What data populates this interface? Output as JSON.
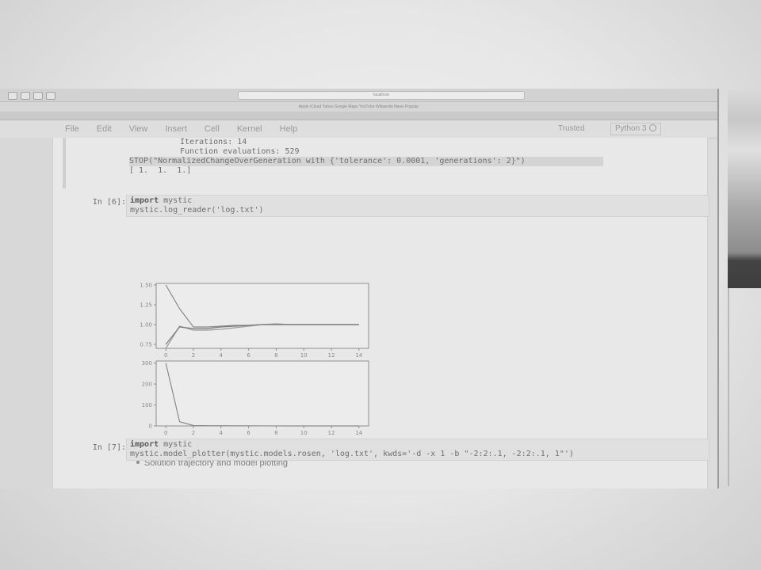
{
  "browser": {
    "url": "localhost",
    "bookmarks": "Apple  iCloud  Yahoo  Google Maps  YouTube  Wikipedia  News  Popular"
  },
  "menubar": {
    "items": [
      "File",
      "Edit",
      "View",
      "Insert",
      "Cell",
      "Kernel",
      "Help"
    ],
    "trusted": "Trusted",
    "kernel": "Python 3"
  },
  "cells": {
    "prev_output": {
      "iterations": "Iterations: 14",
      "evaluations": "Function evaluations: 529",
      "stop": "STOP(\"NormalizedChangeOverGeneration with {'tolerance': 0.0001, 'generations': 2}\")",
      "result": "[ 1.  1.  1.]"
    },
    "cell6": {
      "prompt": "In [6]:",
      "line1_kw": "import",
      "line1_rest": " mystic",
      "line2": "mystic.log_reader('log.txt')"
    },
    "markdown": {
      "bullet": "Solution trajectory and model plotting"
    },
    "cell7": {
      "prompt": "In [7]:",
      "line1_kw": "import",
      "line1_rest": " mystic",
      "line2": "mystic.model_plotter(mystic.models.rosen, 'log.txt', kwds='-d -x 1 -b \"-2:2:.1, -2:2:.1, 1\"')"
    }
  },
  "chart_data": [
    {
      "type": "line",
      "x": [
        0,
        1,
        2,
        3,
        4,
        5,
        6,
        7,
        8,
        9,
        10,
        11,
        12,
        13,
        14
      ],
      "series": [
        {
          "values": [
            1.5,
            1.2,
            0.97,
            0.97,
            0.98,
            0.99,
            0.99,
            1.0,
            1.0,
            1.0,
            1.0,
            1.0,
            1.0,
            1.0,
            1.0
          ]
        },
        {
          "values": [
            0.7,
            0.98,
            0.93,
            0.93,
            0.94,
            0.96,
            0.98,
            1.0,
            1.01,
            1.0,
            1.0,
            1.0,
            1.0,
            1.0,
            1.0
          ]
        },
        {
          "values": [
            0.75,
            0.97,
            0.95,
            0.95,
            0.97,
            0.98,
            0.99,
            1.0,
            1.0,
            1.0,
            1.0,
            1.0,
            1.0,
            1.0,
            1.0
          ]
        }
      ],
      "ylim": [
        0.7,
        1.52
      ],
      "xticks": [
        "0",
        "2",
        "4",
        "6",
        "8",
        "10",
        "12",
        "14"
      ],
      "yticks": [
        "0.75",
        "1.00",
        "1.25",
        "1.50"
      ]
    },
    {
      "type": "line",
      "x": [
        0,
        1,
        2,
        3,
        4,
        5,
        6,
        7,
        8,
        9,
        10,
        11,
        12,
        13,
        14
      ],
      "series": [
        {
          "values": [
            300,
            20,
            2,
            1,
            1,
            0.5,
            0.5,
            0.3,
            0.2,
            0.1,
            0.1,
            0.1,
            0.1,
            0.1,
            0.1
          ]
        }
      ],
      "ylim": [
        0,
        310
      ],
      "xticks": [
        "0",
        "2",
        "4",
        "6",
        "8",
        "10",
        "12",
        "14"
      ],
      "yticks": [
        "0",
        "100",
        "200",
        "300"
      ]
    }
  ],
  "colors": {
    "line_a": "#8a8a8a",
    "line_b": "#9c9c9c",
    "line_c": "#7a7a7a",
    "axis": "#8e8e8e"
  }
}
